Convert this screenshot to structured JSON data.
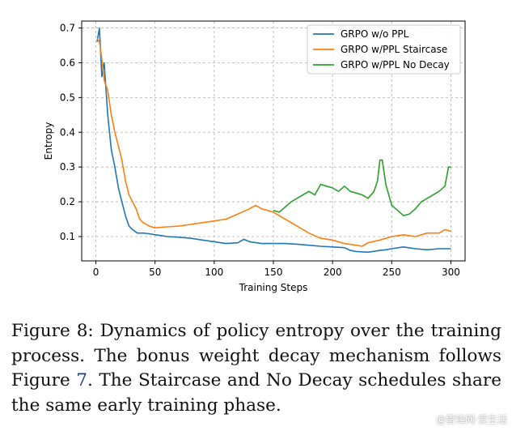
{
  "chart_data": {
    "type": "line",
    "xlabel": "Training Steps",
    "ylabel": "Entropy",
    "xlim": [
      -12,
      312
    ],
    "ylim": [
      0.03,
      0.72
    ],
    "xticks": [
      0,
      50,
      100,
      150,
      200,
      250,
      300
    ],
    "yticks": [
      0.1,
      0.2,
      0.3,
      0.4,
      0.5,
      0.6,
      0.7
    ],
    "ytick_labels": [
      "0.1",
      "0.2",
      "0.3",
      "0.4",
      "0.5",
      "0.6",
      "0.7"
    ],
    "grid": true,
    "legend_position": "top-right",
    "series": [
      {
        "name": "GRPO w/o PPL",
        "color": "#1f77b4",
        "x": [
          1,
          3,
          5,
          7,
          10,
          13,
          16,
          19,
          22,
          25,
          28,
          31,
          35,
          40,
          45,
          50,
          55,
          60,
          70,
          80,
          90,
          100,
          110,
          120,
          125,
          130,
          140,
          150,
          160,
          170,
          180,
          190,
          200,
          210,
          215,
          220,
          230,
          240,
          245,
          250,
          260,
          270,
          280,
          290,
          300
        ],
        "y": [
          0.66,
          0.7,
          0.56,
          0.6,
          0.45,
          0.35,
          0.3,
          0.24,
          0.2,
          0.16,
          0.13,
          0.12,
          0.11,
          0.11,
          0.108,
          0.105,
          0.103,
          0.1,
          0.098,
          0.095,
          0.09,
          0.085,
          0.08,
          0.082,
          0.092,
          0.085,
          0.08,
          0.08,
          0.08,
          0.078,
          0.075,
          0.072,
          0.07,
          0.068,
          0.06,
          0.057,
          0.055,
          0.06,
          0.062,
          0.065,
          0.07,
          0.065,
          0.062,
          0.065,
          0.065
        ]
      },
      {
        "name": "GRPO w/PPL Staircase",
        "color": "#ff7f0e",
        "x": [
          1,
          3,
          5,
          7,
          10,
          13,
          16,
          19,
          22,
          25,
          28,
          31,
          34,
          37,
          40,
          45,
          50,
          60,
          70,
          80,
          90,
          100,
          110,
          120,
          130,
          135,
          140,
          150,
          155,
          160,
          170,
          180,
          190,
          200,
          210,
          220,
          225,
          230,
          240,
          250,
          260,
          270,
          280,
          290,
          295,
          300
        ],
        "y": [
          0.67,
          0.66,
          0.61,
          0.55,
          0.52,
          0.45,
          0.4,
          0.36,
          0.32,
          0.26,
          0.22,
          0.2,
          0.18,
          0.15,
          0.14,
          0.13,
          0.125,
          0.128,
          0.13,
          0.135,
          0.14,
          0.145,
          0.15,
          0.165,
          0.18,
          0.19,
          0.18,
          0.17,
          0.16,
          0.15,
          0.13,
          0.11,
          0.095,
          0.09,
          0.08,
          0.075,
          0.072,
          0.082,
          0.09,
          0.1,
          0.105,
          0.1,
          0.11,
          0.11,
          0.12,
          0.115
        ]
      },
      {
        "name": "GRPO w/PPL No Decay",
        "color": "#2ca02c",
        "x": [
          150,
          155,
          160,
          165,
          170,
          175,
          180,
          185,
          190,
          195,
          200,
          205,
          210,
          215,
          220,
          225,
          230,
          235,
          238,
          240,
          242,
          245,
          250,
          255,
          260,
          265,
          270,
          275,
          280,
          285,
          290,
          295,
          298,
          300
        ],
        "y": [
          0.175,
          0.17,
          0.185,
          0.2,
          0.21,
          0.22,
          0.23,
          0.22,
          0.25,
          0.245,
          0.24,
          0.23,
          0.245,
          0.23,
          0.225,
          0.22,
          0.21,
          0.23,
          0.26,
          0.32,
          0.32,
          0.25,
          0.19,
          0.175,
          0.16,
          0.165,
          0.18,
          0.2,
          0.21,
          0.22,
          0.23,
          0.245,
          0.3,
          0.3
        ]
      }
    ]
  },
  "caption": {
    "prefix": "Figure 8:  Dynamics of policy entropy over the training process. The bonus weight decay mechanism follows Figure ",
    "ref": "7",
    "suffix": ". The Staircase and No Decay schedules share the same early training phase."
  },
  "watermark": "@雷锋网·爱生活"
}
